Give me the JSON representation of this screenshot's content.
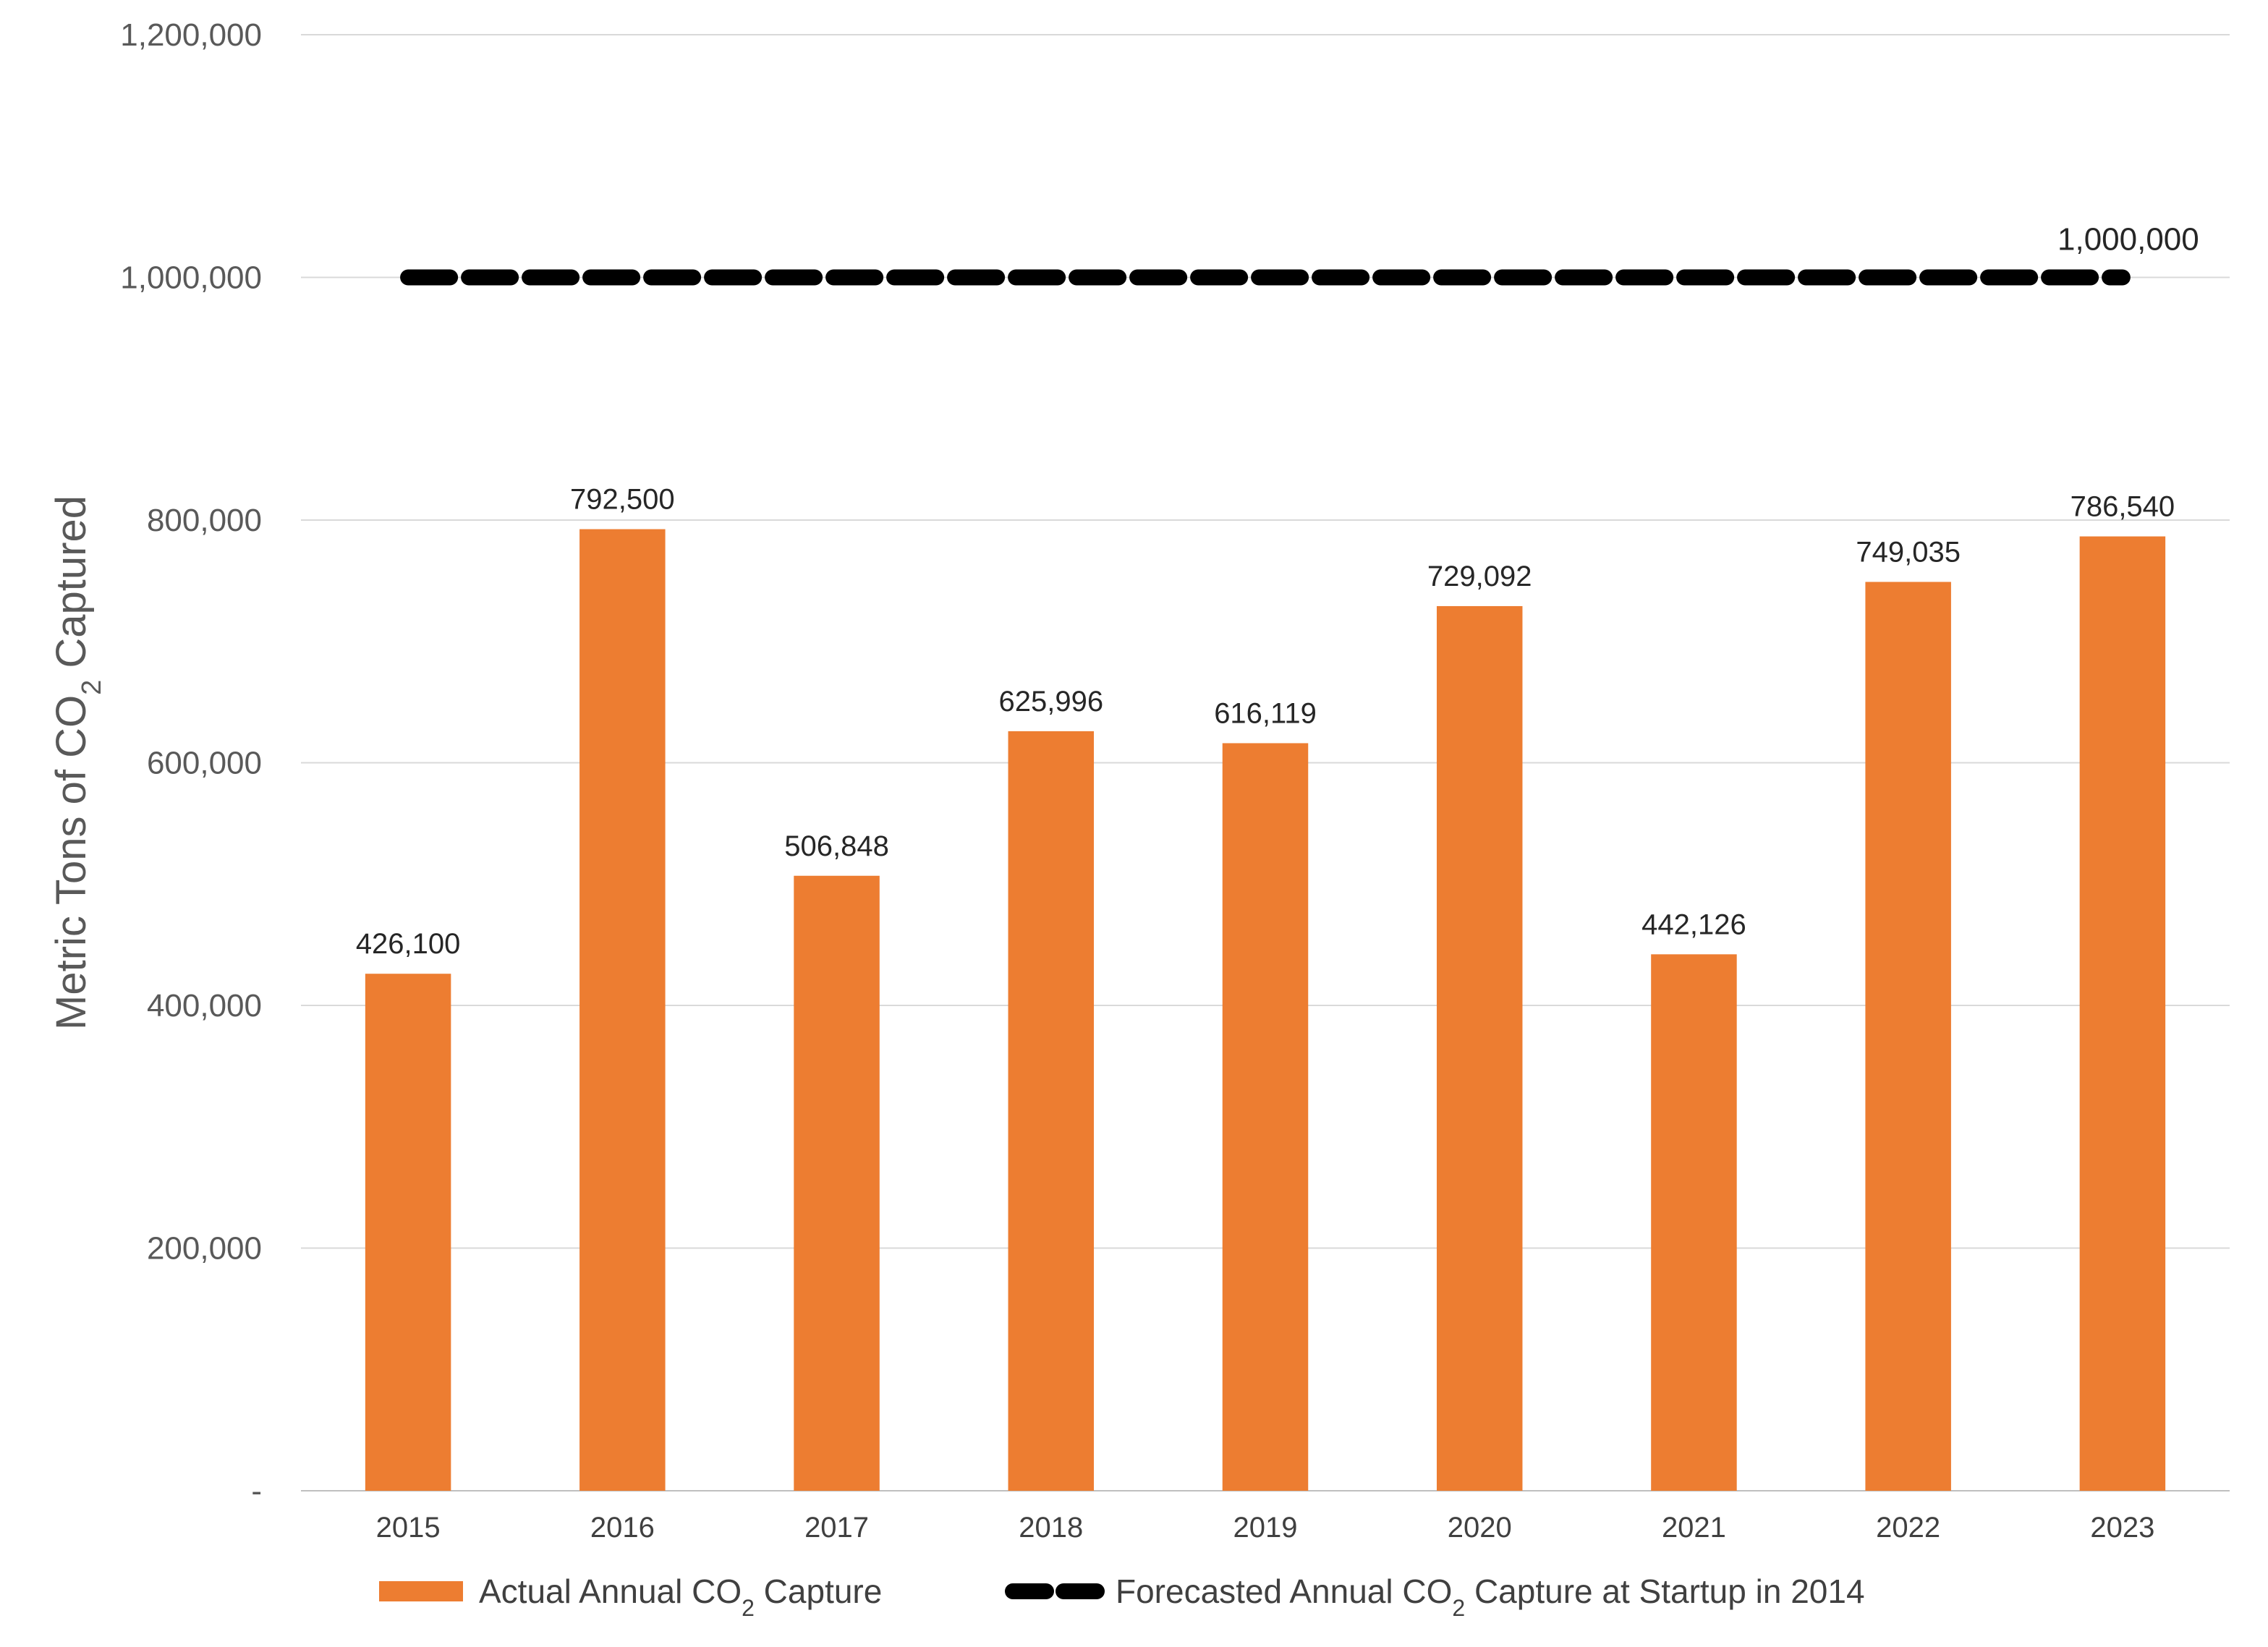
{
  "chart_data": {
    "type": "bar",
    "categories": [
      "2015",
      "2016",
      "2017",
      "2018",
      "2019",
      "2020",
      "2021",
      "2022",
      "2023"
    ],
    "series": [
      {
        "name": "Actual Annual CO₂ Capture",
        "values": [
          426100,
          792500,
          506848,
          625996,
          616119,
          729092,
          442126,
          749035,
          786540
        ],
        "data_labels": [
          "426,100",
          "792,500",
          "506,848",
          "625,996",
          "616,119",
          "729,092",
          "442,126",
          "749,035",
          "786,540"
        ],
        "color": "#ED7D31"
      },
      {
        "name": "Forecasted Annual CO₂ Capture at Startup in 2014",
        "type": "line",
        "style": "dashed",
        "value": 1000000,
        "data_label": "1,000,000",
        "color": "#000000"
      }
    ],
    "ylabel": "Metric Tons of CO₂ Captured",
    "xlabel": "",
    "ylim": [
      0,
      1200000
    ],
    "yticks": [
      0,
      200000,
      400000,
      600000,
      800000,
      1000000,
      1200000
    ],
    "ytick_labels": [
      "-",
      "200,000",
      "400,000",
      "600,000",
      "800,000",
      "1,000,000",
      "1,200,000"
    ],
    "grid": true,
    "gridline_color": "#D9D9D9",
    "legend_position": "bottom"
  }
}
